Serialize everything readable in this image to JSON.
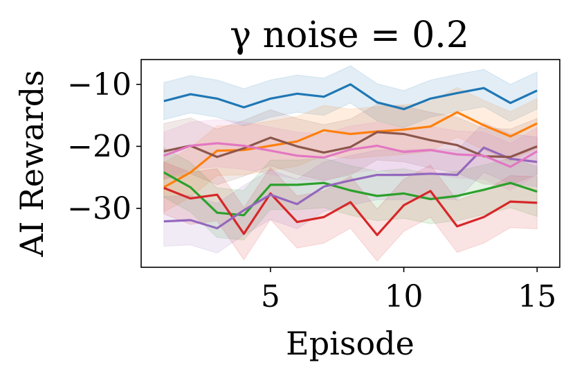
{
  "chart_data": {
    "type": "line",
    "title": "γ noise = 0.2",
    "xlabel": "Episode",
    "ylabel": "AI Rewards",
    "xlim": [
      0.15,
      15.85
    ],
    "ylim": [
      -39.5,
      -6.0
    ],
    "xticks": [
      5,
      10,
      15
    ],
    "xtick_labels": [
      "5",
      "10",
      "15"
    ],
    "yticks": [
      -10,
      -20,
      -30
    ],
    "ytick_labels": [
      "−10",
      "−20",
      "−30"
    ],
    "grid": false,
    "legend": "none",
    "x": [
      1,
      2,
      3,
      4,
      5,
      6,
      7,
      8,
      9,
      10,
      11,
      12,
      13,
      14,
      15
    ],
    "series": [
      {
        "name": "blue",
        "color": "#1f77b4",
        "values": [
          -12.7,
          -11.6,
          -12.3,
          -13.7,
          -12.3,
          -11.5,
          -12.0,
          -10.0,
          -12.9,
          -14.0,
          -12.3,
          -11.4,
          -10.6,
          -13.0,
          -11.0
        ],
        "band": 3.0
      },
      {
        "name": "orange",
        "color": "#ff7f0e",
        "values": [
          -26.6,
          -24.2,
          -20.7,
          -20.6,
          -19.9,
          -19.2,
          -17.4,
          -18.0,
          -17.6,
          -17.3,
          -16.8,
          -14.5,
          -16.6,
          -18.4,
          -16.3
        ],
        "band": 4.0
      },
      {
        "name": "green",
        "color": "#2ca02c",
        "values": [
          -24.2,
          -26.6,
          -30.7,
          -31.1,
          -26.2,
          -26.2,
          -25.9,
          -27.1,
          -28.0,
          -27.6,
          -28.5,
          -28.0,
          -27.0,
          -25.9,
          -27.3
        ],
        "band": 4.0
      },
      {
        "name": "red",
        "color": "#d62728",
        "values": [
          -26.7,
          -28.4,
          -27.8,
          -34.1,
          -27.6,
          -32.2,
          -31.4,
          -29.0,
          -34.3,
          -29.5,
          -27.2,
          -32.9,
          -31.4,
          -28.9,
          -29.1
        ],
        "band": 4.2
      },
      {
        "name": "purple",
        "color": "#9467bd",
        "values": [
          -32.1,
          -31.9,
          -33.2,
          -30.3,
          -27.8,
          -29.3,
          -26.5,
          -25.5,
          -24.6,
          -24.6,
          -24.4,
          -24.6,
          -20.2,
          -22.0,
          -22.5
        ],
        "band": 4.0
      },
      {
        "name": "brown",
        "color": "#8c564b",
        "values": [
          -20.8,
          -19.9,
          -21.7,
          -20.3,
          -18.6,
          -20.0,
          -21.0,
          -20.1,
          -17.7,
          -18.0,
          -19.0,
          -19.8,
          -21.6,
          -21.7,
          -20.0
        ],
        "band": 4.5
      },
      {
        "name": "pink",
        "color": "#e377c2",
        "values": [
          -21.5,
          -19.9,
          -19.5,
          -19.9,
          -20.7,
          -21.5,
          -21.8,
          -20.5,
          -19.9,
          -20.9,
          -20.6,
          -21.3,
          -21.5,
          -23.3,
          -20.8
        ],
        "band": 3.8
      }
    ]
  }
}
